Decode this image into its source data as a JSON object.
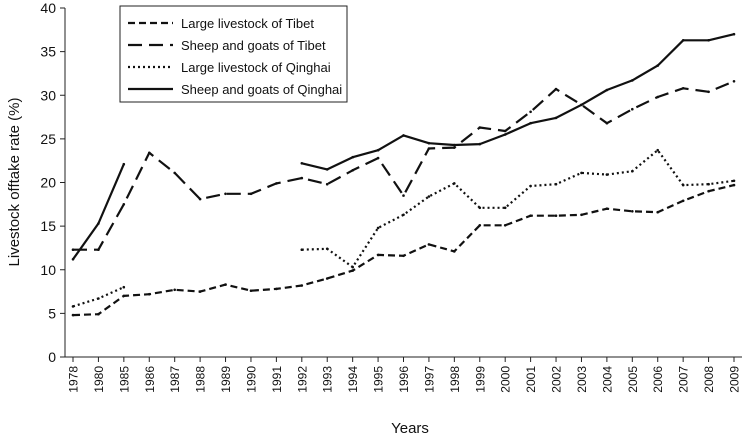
{
  "chart_data": {
    "type": "line",
    "title": "",
    "xlabel": "Years",
    "ylabel": "Livestock offtake rate (%)",
    "ylim": [
      0,
      40
    ],
    "yticks": [
      0,
      5,
      10,
      15,
      20,
      25,
      30,
      35,
      40
    ],
    "grid": false,
    "legend_position": "top-left",
    "categories": [
      "1978",
      "1980",
      "1985",
      "1986",
      "1987",
      "1988",
      "1989",
      "1990",
      "1991",
      "1992",
      "1993",
      "1994",
      "1995",
      "1996",
      "1997",
      "1998",
      "1999",
      "2000",
      "2001",
      "2002",
      "2003",
      "2004",
      "2005",
      "2006",
      "2007",
      "2008",
      "2009"
    ],
    "series": [
      {
        "name": "Large livestock of Tibet",
        "dash": "short-dash",
        "color": "#111111",
        "values": [
          4.8,
          4.9,
          7.0,
          7.2,
          7.7,
          7.5,
          8.3,
          7.6,
          7.8,
          8.2,
          9.0,
          9.9,
          11.7,
          11.6,
          12.9,
          12.1,
          15.1,
          15.1,
          16.2,
          16.2,
          16.3,
          17.0,
          16.7,
          16.6,
          17.9,
          19.0,
          19.7
        ]
      },
      {
        "name": "Sheep and goats of Tibet",
        "dash": "long-dash",
        "color": "#111111",
        "values": [
          12.3,
          12.3,
          17.5,
          23.4,
          21.1,
          18.1,
          18.7,
          18.7,
          19.9,
          20.5,
          19.8,
          21.4,
          22.8,
          18.5,
          23.9,
          24.0,
          26.3,
          25.9,
          28.1,
          30.7,
          28.9,
          26.8,
          28.4,
          29.8,
          30.8,
          30.4,
          31.6
        ]
      },
      {
        "name": "Large livestock of Qinghai",
        "dash": "dotted",
        "color": "#111111",
        "values": [
          5.8,
          6.7,
          8.0,
          null,
          null,
          null,
          null,
          null,
          null,
          12.3,
          12.4,
          10.3,
          14.8,
          16.3,
          18.4,
          19.9,
          17.1,
          17.1,
          19.6,
          19.8,
          21.1,
          20.9,
          21.3,
          23.7,
          19.7,
          19.8,
          20.2
        ]
      },
      {
        "name": "Sheep and goats of Qinghai",
        "dash": "solid",
        "color": "#111111",
        "values": [
          11.2,
          15.3,
          22.1,
          null,
          null,
          null,
          null,
          null,
          null,
          22.2,
          21.5,
          22.9,
          23.7,
          25.4,
          24.5,
          24.3,
          24.4,
          25.5,
          26.8,
          27.4,
          28.9,
          30.6,
          31.7,
          33.4,
          36.3,
          36.3,
          37.0
        ]
      }
    ]
  }
}
